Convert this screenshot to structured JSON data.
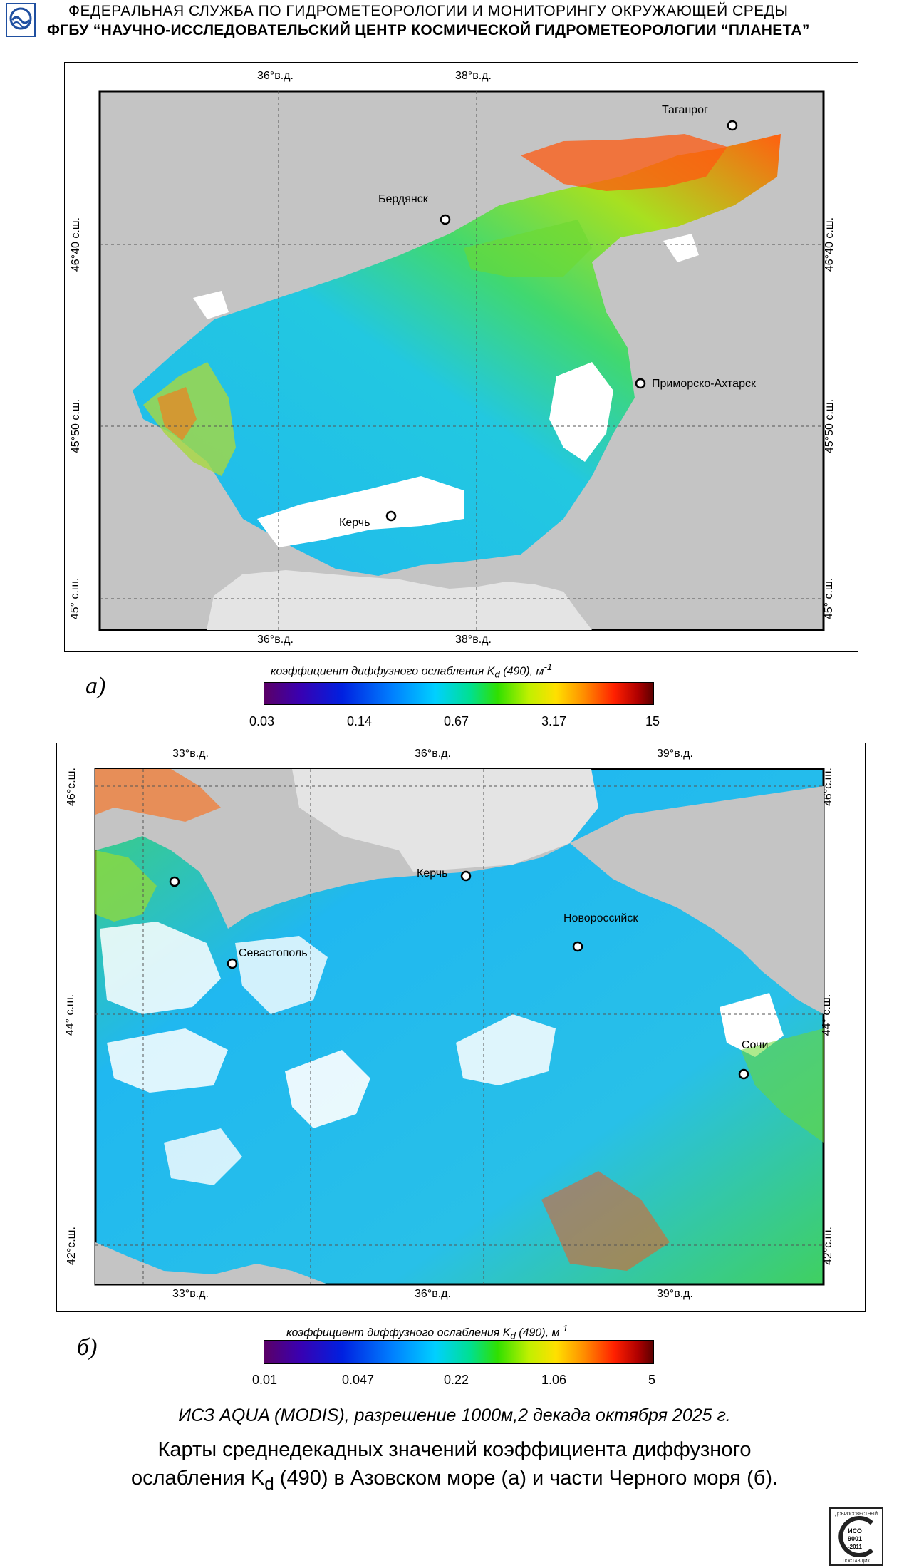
{
  "header": {
    "line1": "ФЕДЕРАЛЬНАЯ  СЛУЖБА  ПО ГИДРОМЕТЕОРОЛОГИИ И МОНИТОРИНГУ ОКРУЖАЮЩЕЙ СРЕДЫ",
    "line2": "ФГБУ “НАУЧНО-ИССЛЕДОВАТЕЛЬСКИЙ ЦЕНТР КОСМИЧЕСКОЙ ГИДРОМЕТЕОРОЛОГИИ “ПЛАНЕТА”",
    "logo_icon": "roshydromet-logo-icon"
  },
  "panel_a": {
    "letter": "а)",
    "lon_ticks": [
      "36°в.д.",
      "38°в.д."
    ],
    "lat_ticks": [
      "46°40 с.ш.",
      "45°50 с.ш.",
      "45° с.ш."
    ],
    "cities": [
      "Таганрог",
      "Бердянск",
      "Приморско-Ахтарск",
      "Керчь"
    ],
    "colorbar": {
      "title": "коэффициент диффузного ослабления",
      "kd": "K",
      "kd_sub": "d",
      "param": "(490), м",
      "unit_sup": "-1",
      "labels": [
        "0.03",
        "0.14",
        "0.67",
        "3.17",
        "15"
      ]
    }
  },
  "panel_b": {
    "letter": "б)",
    "lon_ticks": [
      "33°в.д.",
      "36°в.д.",
      "39°в.д."
    ],
    "lat_ticks": [
      "46°с.ш.",
      "44° с.ш.",
      "42°с.ш."
    ],
    "cities": [
      "Керчь",
      "Севастополь",
      "Новороссийск",
      "Сочи"
    ],
    "colorbar": {
      "title": "коэффициент диффузного ослабления",
      "kd": "K",
      "kd_sub": "d",
      "param": "(490), м",
      "unit_sup": "-1",
      "labels": [
        "0.01",
        "0.047",
        "0.22",
        "1.06",
        "5"
      ]
    }
  },
  "colors": {
    "land": "#c8c8c8",
    "land_light": "#e4e4e4",
    "cloud": "#ffffff",
    "low": "#1aa8f0",
    "mid": "#30d860",
    "high": "#ff5a10"
  },
  "caption": {
    "satellite": "ИСЗ AQUA (MODIS), разрешение 1000м,2 декада октября 2025 г.",
    "line1": "Карты среднедекадных значений коэффициента диффузного",
    "line2_pre": "ослабления K",
    "line2_sub": "d",
    "line2_post": " (490) в Азовском море (а) и части Черного моря (б)."
  },
  "stamp": {
    "iso": "ИСО",
    "std": "9001",
    "year": "-2011",
    "top": "ДОБРОСОВЕСТНЫЙ",
    "bottom": "ПОСТАВЩИК"
  }
}
